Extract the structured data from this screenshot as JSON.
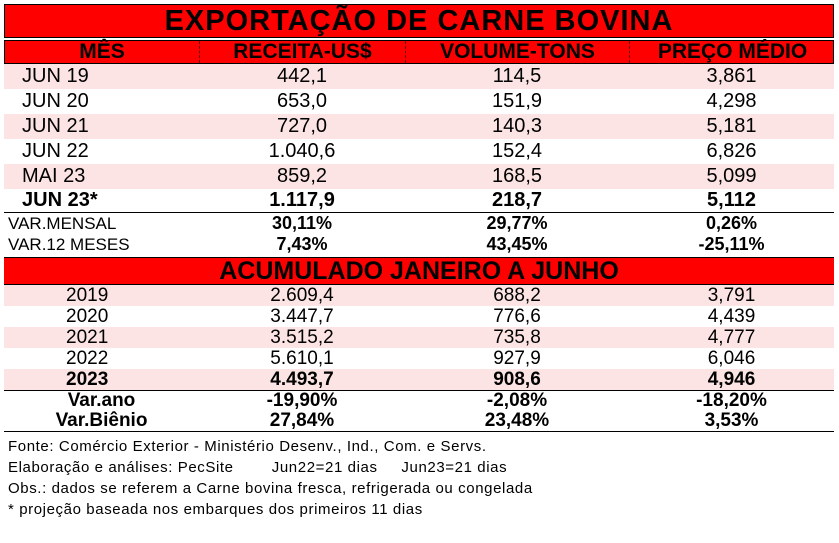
{
  "title": "EXPORTAÇÃO DE CARNE BOVINA",
  "headers": [
    "MÊS",
    "RECEITA-US$",
    "VOLUME-TONS",
    "PREÇO MÉDIO"
  ],
  "monthly_rows": [
    {
      "label": "JUN 19",
      "receita": "442,1",
      "volume": "114,5",
      "preco": "3,861"
    },
    {
      "label": "JUN 20",
      "receita": "653,0",
      "volume": "151,9",
      "preco": "4,298"
    },
    {
      "label": "JUN 21",
      "receita": "727,0",
      "volume": "140,3",
      "preco": "5,181"
    },
    {
      "label": "JUN 22",
      "receita": "1.040,6",
      "volume": "152,4",
      "preco": "6,826"
    },
    {
      "label": "MAI 23",
      "receita": "859,2",
      "volume": "168,5",
      "preco": "5,099"
    },
    {
      "label": "JUN 23*",
      "receita": "1.117,9",
      "volume": "218,7",
      "preco": "5,112"
    }
  ],
  "monthly_variations": [
    {
      "label": "VAR.MENSAL",
      "receita": "30,11%",
      "volume": "29,77%",
      "preco": "0,26%"
    },
    {
      "label": "VAR.12 MESES",
      "receita": "7,43%",
      "volume": "43,45%",
      "preco": "-25,11%"
    }
  ],
  "accumulated_title": "ACUMULADO JANEIRO A JUNHO",
  "accumulated_rows": [
    {
      "label": "2019",
      "receita": "2.609,4",
      "volume": "688,2",
      "preco": "3,791"
    },
    {
      "label": "2020",
      "receita": "3.447,7",
      "volume": "776,6",
      "preco": "4,439"
    },
    {
      "label": "2021",
      "receita": "3.515,2",
      "volume": "735,8",
      "preco": "4,777"
    },
    {
      "label": "2022",
      "receita": "5.610,1",
      "volume": "927,9",
      "preco": "6,046"
    },
    {
      "label": "2023",
      "receita": "4.493,7",
      "volume": "908,6",
      "preco": "4,946"
    }
  ],
  "accumulated_variations": [
    {
      "label": "Var.ano",
      "receita": "-19,90%",
      "volume": "-2,08%",
      "preco": "-18,20%"
    },
    {
      "label": "Var.Biênio",
      "receita": "27,84%",
      "volume": "23,48%",
      "preco": "3,53%"
    }
  ],
  "notes": [
    "Fonte: Comércio Exterior - Ministério Desenv., Ind., Com. e Servs.",
    "Elaboração e análises: PecSite        Jun22=21 dias     Jun23=21 dias",
    "Obs.: dados se referem a Carne bovina fresca, refrigerada ou congelada",
    "* projeção baseada nos embarques dos primeiros 11 dias"
  ]
}
